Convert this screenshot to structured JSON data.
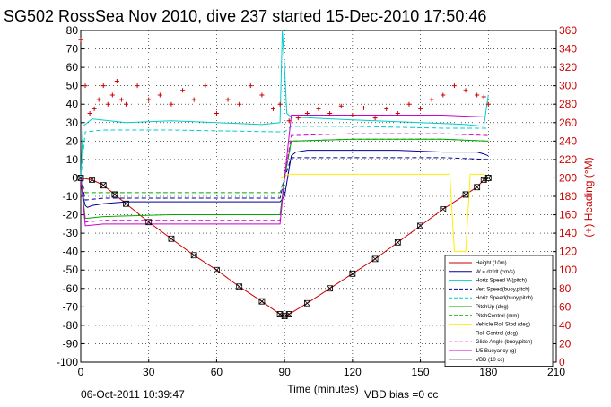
{
  "chart_data": {
    "type": "line",
    "title": "SG502 RossSea Nov 2010, dive 237 started 15-Dec-2010 17:50:46",
    "xlabel": "Time (minutes)",
    "ylabel": "",
    "y2label": "(+) Heading (°M)",
    "xlim": [
      0,
      210
    ],
    "ylim": [
      -100,
      80
    ],
    "y2lim": [
      0,
      360
    ],
    "xticks": [
      "0",
      "30",
      "60",
      "90",
      "120",
      "150",
      "180",
      "210"
    ],
    "yticks": [
      "-100",
      "-90",
      "-80",
      "-70",
      "-60",
      "-50",
      "-40",
      "-30",
      "-20",
      "-10",
      "0",
      "10",
      "20",
      "30",
      "40",
      "50",
      "60",
      "70",
      "80"
    ],
    "y2ticks": [
      "0",
      "20",
      "40",
      "60",
      "80",
      "100",
      "120",
      "140",
      "160",
      "180",
      "200",
      "220",
      "240",
      "260",
      "280",
      "300",
      "320",
      "340",
      "360"
    ],
    "grid": true,
    "legend_position": "bottom-right",
    "series": [
      {
        "name": "Height (10m)",
        "color": "#cc0000",
        "style": "solid",
        "x": [
          0,
          5,
          10,
          15,
          20,
          30,
          40,
          50,
          60,
          70,
          80,
          88,
          90,
          92,
          100,
          110,
          120,
          130,
          140,
          150,
          160,
          170,
          175,
          178,
          180
        ],
        "y": [
          0,
          -1,
          -4,
          -9,
          -14,
          -24,
          -33,
          -42,
          -50,
          -59,
          -67,
          -74,
          -75,
          -74,
          -68,
          -60,
          -52,
          -44,
          -35,
          -26,
          -17,
          -9,
          -5,
          -1,
          0
        ]
      },
      {
        "name": "W = dz/dt (cm/s)",
        "color": "#000099",
        "style": "solid",
        "x": [
          0,
          1,
          2,
          3,
          5,
          10,
          20,
          40,
          60,
          80,
          88,
          90,
          92,
          93,
          95,
          100,
          120,
          140,
          160,
          175,
          178,
          180
        ],
        "y": [
          0,
          -10,
          -15,
          -16,
          -15,
          -14,
          -13,
          -13,
          -13,
          -13,
          -13,
          -10,
          5,
          12,
          14,
          15,
          15,
          15,
          14,
          14,
          13,
          12
        ]
      },
      {
        "name": "Horiz Speed W(pitch)",
        "color": "#00cccc",
        "style": "solid",
        "x": [
          0,
          1,
          3,
          5,
          20,
          40,
          60,
          80,
          88,
          89,
          90,
          91,
          93,
          95,
          110,
          130,
          150,
          170,
          178,
          180
        ],
        "y": [
          0,
          28,
          30,
          32,
          30,
          31,
          30,
          29,
          30,
          80,
          60,
          35,
          33,
          33,
          32,
          31,
          30,
          29,
          28,
          45
        ]
      },
      {
        "name": "Vert Speed(buoy,pitch)",
        "color": "#000099",
        "style": "dashed",
        "x": [
          0,
          2,
          10,
          40,
          88,
          90,
          93,
          120,
          160,
          180
        ],
        "y": [
          0,
          -12,
          -11,
          -11,
          -11,
          0,
          11,
          11,
          11,
          10
        ]
      },
      {
        "name": "Horiz Speed(buoy,pitch)",
        "color": "#00cccc",
        "style": "dashed",
        "x": [
          0,
          2,
          10,
          40,
          88,
          90,
          93,
          120,
          160,
          180
        ],
        "y": [
          0,
          25,
          26,
          26,
          25,
          25,
          28,
          28,
          27,
          27
        ]
      },
      {
        "name": "PitchUp (deg)",
        "color": "#00aa00",
        "style": "solid",
        "x": [
          0,
          2,
          10,
          40,
          88,
          90,
          93,
          120,
          160,
          180
        ],
        "y": [
          0,
          -22,
          -21,
          -20,
          -20,
          0,
          20,
          21,
          21,
          20
        ]
      },
      {
        "name": "PitchControl (mm)",
        "color": "#00aa00",
        "style": "dashed",
        "x": [
          0,
          2,
          10,
          40,
          88,
          90,
          93,
          120,
          160,
          180
        ],
        "y": [
          0,
          -8,
          -8,
          -8,
          -8,
          0,
          20,
          21,
          21,
          20
        ]
      },
      {
        "name": "Vehicle Roll Stbd (deg)",
        "color": "#ffee00",
        "style": "solid",
        "x": [
          0,
          5,
          20,
          40,
          60,
          80,
          88,
          92,
          120,
          150,
          163,
          165,
          170,
          172,
          178,
          180
        ],
        "y": [
          0,
          0,
          0,
          0,
          0,
          0,
          0,
          2,
          2,
          2,
          2,
          -40,
          -40,
          2,
          2,
          0
        ]
      },
      {
        "name": "Roll Control (deg)",
        "color": "#ffee00",
        "style": "dashed",
        "x": [
          0,
          180
        ],
        "y": [
          0,
          0
        ]
      },
      {
        "name": "Glide Angle (buoy,pitch)",
        "color": "#cc00cc",
        "style": "dashed",
        "x": [
          0,
          2,
          10,
          40,
          88,
          90,
          93,
          120,
          160,
          180
        ],
        "y": [
          0,
          -24,
          -23,
          -23,
          -23,
          0,
          23,
          24,
          24,
          23
        ]
      },
      {
        "name": "1/5 Buoyancy (g)",
        "color": "#cc00cc",
        "style": "solid",
        "x": [
          0,
          2,
          10,
          40,
          88,
          90,
          93,
          120,
          160,
          180
        ],
        "y": [
          0,
          -26,
          -25,
          -25,
          -25,
          0,
          34,
          34,
          34,
          33
        ]
      },
      {
        "name": "VBD (10 cc)",
        "color": "#000000",
        "style": "markers",
        "x": [
          0,
          5,
          10,
          15,
          20,
          30,
          40,
          50,
          60,
          70,
          80,
          88,
          90,
          92,
          100,
          110,
          120,
          130,
          140,
          150,
          160,
          170,
          175,
          178,
          180
        ],
        "y": [
          0,
          -1,
          -4,
          -9,
          -14,
          -24,
          -33,
          -42,
          -50,
          -59,
          -67,
          -74,
          -75,
          -74,
          -68,
          -60,
          -52,
          -44,
          -35,
          -26,
          -17,
          -9,
          -5,
          -1,
          0
        ]
      },
      {
        "name": "Heading",
        "color": "#cc0000",
        "style": "plus",
        "axis": "right",
        "x": [
          0,
          2,
          4,
          6,
          8,
          10,
          12,
          14,
          16,
          18,
          20,
          25,
          30,
          35,
          40,
          45,
          50,
          55,
          60,
          65,
          70,
          75,
          80,
          85,
          88,
          92,
          96,
          100,
          105,
          110,
          115,
          120,
          125,
          130,
          135,
          140,
          145,
          150,
          155,
          160,
          165,
          170,
          175,
          178,
          180
        ],
        "y": [
          350,
          300,
          270,
          275,
          285,
          300,
          280,
          290,
          305,
          285,
          280,
          300,
          285,
          290,
          280,
          295,
          285,
          300,
          270,
          285,
          280,
          300,
          290,
          275,
          280,
          262,
          265,
          270,
          275,
          270,
          278,
          268,
          276,
          265,
          275,
          270,
          280,
          275,
          285,
          290,
          300,
          295,
          290,
          288,
          280
        ]
      }
    ],
    "footer_left": "06-Oct-2011 10:39:47",
    "footer_right": "VBD bias =0 cc"
  }
}
